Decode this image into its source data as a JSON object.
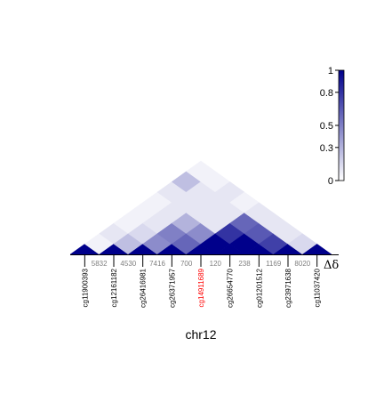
{
  "chart_data": {
    "type": "heatmap",
    "title": "",
    "xlabel": "chr12",
    "delta_label": "Δδ",
    "colorbar": {
      "range": [
        0,
        1
      ],
      "ticks": [
        "0",
        "0.3",
        "0.5",
        "0.8",
        "1"
      ],
      "tick_values": [
        0,
        0.3,
        0.5,
        0.8,
        1
      ],
      "low_color": "#ffffff",
      "high_color": "#00008b"
    },
    "probes": [
      "cg11900393",
      "cg12161182",
      "cg26416981",
      "cg26371957",
      "cg14911689",
      "cg26654770",
      "cg01201512",
      "cg23971638",
      "cg11037420"
    ],
    "highlight_probe": "cg14911689",
    "highlight_color": "#ff0000",
    "probe_color": "#000000",
    "distances": [
      "5832",
      "4530",
      "7416",
      "700",
      "120",
      "238",
      "1169",
      "8020"
    ],
    "matrix": [
      [
        1.0,
        0.05,
        0.1,
        0.05,
        0.05,
        0.05,
        0.1,
        0.25,
        0.05
      ],
      [
        0.05,
        1.0,
        0.25,
        0.15,
        0.1,
        0.1,
        0.1,
        0.1,
        0.05
      ],
      [
        0.1,
        0.25,
        1.0,
        0.45,
        0.5,
        0.3,
        0.1,
        0.1,
        0.1
      ],
      [
        0.05,
        0.15,
        0.45,
        1.0,
        0.6,
        0.45,
        0.1,
        0.1,
        0.05
      ],
      [
        0.05,
        0.1,
        0.5,
        0.6,
        1.0,
        1.0,
        0.8,
        0.6,
        0.1
      ],
      [
        0.05,
        0.1,
        0.3,
        0.45,
        1.0,
        1.0,
        1.0,
        0.65,
        0.1
      ],
      [
        0.1,
        0.1,
        0.1,
        0.1,
        0.8,
        1.0,
        1.0,
        0.75,
        0.1
      ],
      [
        0.25,
        0.1,
        0.1,
        0.1,
        0.6,
        0.65,
        0.75,
        1.0,
        0.15
      ],
      [
        0.05,
        0.05,
        0.1,
        0.05,
        0.1,
        0.1,
        0.1,
        0.15,
        1.0
      ]
    ]
  }
}
